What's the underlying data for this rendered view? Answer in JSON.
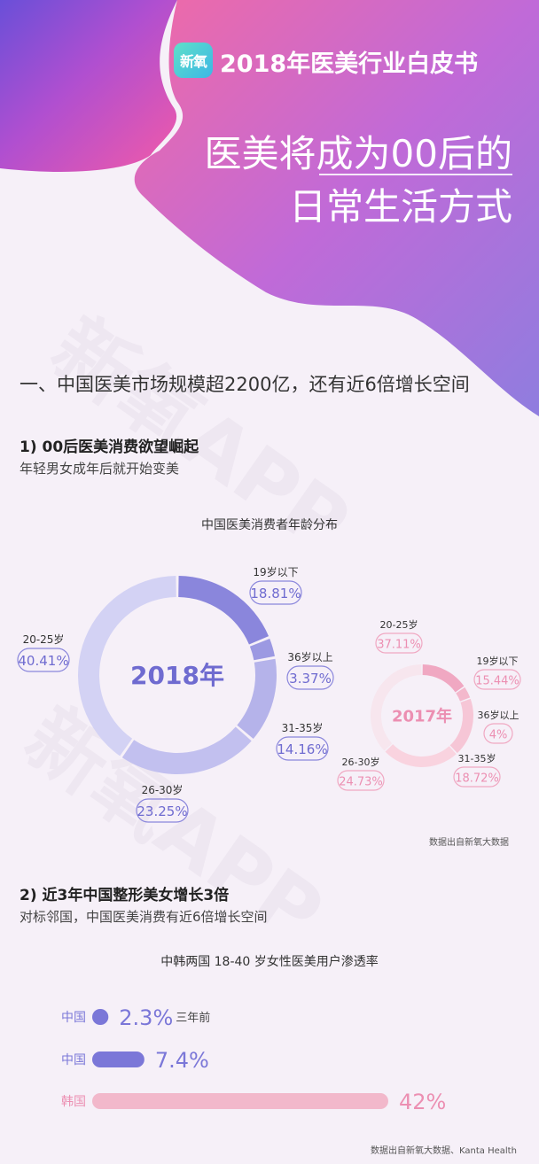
{
  "header": {
    "logo_text": "新氧",
    "report_title": "2018年医美行业白皮书",
    "headline_line1": "医美将成为00后的",
    "headline_line2": "日常生活方式"
  },
  "section1": {
    "title": "一、中国医美市场规模超2200亿，还有近6倍增长空间"
  },
  "part1": {
    "title": "1) 00后医美消费欲望崛起",
    "desc": "年轻男女成年后就开始变美",
    "note": "数据出自新氧大数据"
  },
  "part2": {
    "title": "2) 近3年中国整形美女增长3倍",
    "desc": "对标邻国，中国医美消费有近6倍增长空间",
    "note": "数据出自新氧大数据、Kanta Health"
  },
  "watermark": "新氧APP",
  "colors": {
    "donut2018": [
      "#8a86dc",
      "#9c99e2",
      "#b5b3ea",
      "#c2c0ef",
      "#d3d2f4"
    ],
    "donut2017": [
      "#f0a8c2",
      "#f3b8cc",
      "#f6c6d6",
      "#f9d3df",
      "#f7e6ee"
    ],
    "bar_cn": "#7b77d8",
    "bar_kr": "#f2b8cb"
  },
  "chart_data": [
    {
      "type": "pie",
      "title": "中国医美消费者年龄分布",
      "center_label": "2018年",
      "categories": [
        "19岁以下",
        "36岁以上",
        "31-35岁",
        "26-30岁",
        "20-25岁"
      ],
      "values": [
        18.81,
        3.37,
        14.16,
        23.25,
        40.41
      ],
      "value_labels": [
        "18.81%",
        "3.37%",
        "14.16%",
        "23.25%",
        "40.41%"
      ]
    },
    {
      "type": "pie",
      "center_label": "2017年",
      "categories": [
        "19岁以下",
        "36岁以上",
        "31-35岁",
        "26-30岁",
        "20-25岁"
      ],
      "values": [
        15.44,
        4,
        18.72,
        24.73,
        37.11
      ],
      "value_labels": [
        "15.44%",
        "4%",
        "18.72%",
        "24.73%",
        "37.11%"
      ]
    },
    {
      "type": "bar",
      "orientation": "horizontal",
      "title": "中韩两国 18-40 岁女性医美用户渗透率",
      "categories": [
        "中国",
        "中国",
        "韩国"
      ],
      "values": [
        2.3,
        7.4,
        42
      ],
      "value_labels": [
        "2.3%",
        "7.4%",
        "42%"
      ],
      "annotations": [
        "三年前",
        "",
        ""
      ],
      "xlim": [
        0,
        42
      ]
    }
  ]
}
